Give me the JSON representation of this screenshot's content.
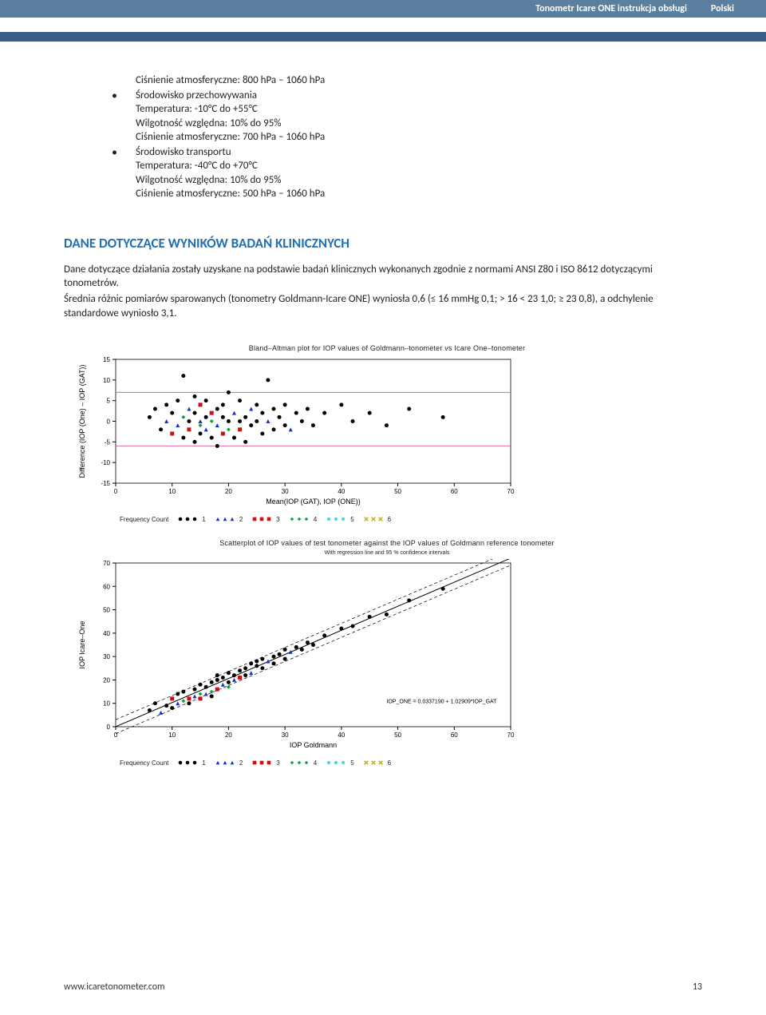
{
  "header": {
    "title": "Tonometr Icare ONE  instrukcja obsługi",
    "lang": "Polski"
  },
  "specs": {
    "line1": "Ciśnienie atmosferyczne: 800 hPa – 1060 hPa",
    "storage": {
      "title": "Środowisko przechowywania",
      "temp": "Temperatura: -10°C do +55°C",
      "humid": "Wilgotność względna: 10% do 95%",
      "press": "Ciśnienie atmosferyczne: 700 hPa – 1060 hPa"
    },
    "transport": {
      "title": "Środowisko transportu",
      "temp": "Temperatura: -40°C do +70°C",
      "humid": "Wilgotność względna: 10% do 95%",
      "press": "Ciśnienie atmosferyczne: 500 hPa – 1060 hPa"
    }
  },
  "section_title": "DANE DOTYCZĄCE WYNIKÓW BADAŃ KLINICZNYCH",
  "para1": "Dane dotyczące działania zostały uzyskane na podstawie badań klinicznych wykonanych zgodnie z normami ANSI Z80 i ISO 8612 dotyczącymi tonometrów.",
  "para2": "Średnia różnic pomiarów sparowanych (tonometry Goldmann-Icare ONE) wyniosła 0,6 (≤ 16 mmHg 0,1; > 16 < 23 1,0; ≥ 23 0,8), a odchylenie standardowe wyniosło 3,1.",
  "chart1": {
    "title": "Bland–Altman plot for IOP values of Goldmann–tonometer vs Icare One–tonometer",
    "ylabel": "Difference (IOP (One) – IOP (GAT))",
    "xlabel": "Mean(IOP (GAT), IOP (ONE))",
    "xlim": [
      0,
      70
    ],
    "ylim": [
      -15,
      15
    ],
    "xticks": [
      0,
      10,
      20,
      30,
      40,
      50,
      60,
      70
    ],
    "yticks": [
      -15,
      -10,
      -5,
      0,
      5,
      10,
      15
    ],
    "ref_lines": {
      "upper": 7,
      "lower": -6,
      "upper_color": "#d94c8a",
      "lower_color": "#d94c8a"
    },
    "grid_color": "#000000",
    "background_color": "#ffffff",
    "points": [
      {
        "x": 6,
        "y": 1,
        "c": "#000",
        "s": "circle"
      },
      {
        "x": 7,
        "y": 3,
        "c": "#000",
        "s": "circle"
      },
      {
        "x": 8,
        "y": -2,
        "c": "#000",
        "s": "circle"
      },
      {
        "x": 9,
        "y": 0,
        "c": "#1030d0",
        "s": "tri"
      },
      {
        "x": 9,
        "y": 4,
        "c": "#000",
        "s": "circle"
      },
      {
        "x": 10,
        "y": -3,
        "c": "#d01010",
        "s": "sq"
      },
      {
        "x": 10,
        "y": 2,
        "c": "#000",
        "s": "circle"
      },
      {
        "x": 11,
        "y": -1,
        "c": "#1030d0",
        "s": "tri"
      },
      {
        "x": 11,
        "y": 5,
        "c": "#000",
        "s": "circle"
      },
      {
        "x": 12,
        "y": -4,
        "c": "#000",
        "s": "circle"
      },
      {
        "x": 12,
        "y": 1,
        "c": "#10a040",
        "s": "diam"
      },
      {
        "x": 12,
        "y": 11,
        "c": "#000",
        "s": "circle"
      },
      {
        "x": 13,
        "y": -2,
        "c": "#d01010",
        "s": "sq"
      },
      {
        "x": 13,
        "y": 3,
        "c": "#1030d0",
        "s": "tri"
      },
      {
        "x": 13,
        "y": 0,
        "c": "#000",
        "s": "circle"
      },
      {
        "x": 14,
        "y": -5,
        "c": "#000",
        "s": "circle"
      },
      {
        "x": 14,
        "y": 2,
        "c": "#000",
        "s": "circle"
      },
      {
        "x": 14,
        "y": 6,
        "c": "#000",
        "s": "circle"
      },
      {
        "x": 15,
        "y": -1,
        "c": "#10a040",
        "s": "diam"
      },
      {
        "x": 15,
        "y": 4,
        "c": "#d01010",
        "s": "sq"
      },
      {
        "x": 15,
        "y": 0,
        "c": "#1030d0",
        "s": "tri"
      },
      {
        "x": 15,
        "y": -3,
        "c": "#000",
        "s": "circle"
      },
      {
        "x": 16,
        "y": 1,
        "c": "#000",
        "s": "circle"
      },
      {
        "x": 16,
        "y": -2,
        "c": "#1030d0",
        "s": "tri"
      },
      {
        "x": 16,
        "y": 5,
        "c": "#000",
        "s": "circle"
      },
      {
        "x": 17,
        "y": -4,
        "c": "#000",
        "s": "circle"
      },
      {
        "x": 17,
        "y": 2,
        "c": "#d01010",
        "s": "sq"
      },
      {
        "x": 17,
        "y": 0,
        "c": "#10a040",
        "s": "diam"
      },
      {
        "x": 18,
        "y": -6,
        "c": "#000",
        "s": "circle"
      },
      {
        "x": 18,
        "y": 3,
        "c": "#000",
        "s": "circle"
      },
      {
        "x": 18,
        "y": -1,
        "c": "#1030d0",
        "s": "tri"
      },
      {
        "x": 19,
        "y": 1,
        "c": "#000",
        "s": "circle"
      },
      {
        "x": 19,
        "y": -3,
        "c": "#d01010",
        "s": "sq"
      },
      {
        "x": 19,
        "y": 4,
        "c": "#000",
        "s": "circle"
      },
      {
        "x": 20,
        "y": 0,
        "c": "#000",
        "s": "circle"
      },
      {
        "x": 20,
        "y": -2,
        "c": "#10a040",
        "s": "diam"
      },
      {
        "x": 20,
        "y": 7,
        "c": "#000",
        "s": "circle"
      },
      {
        "x": 21,
        "y": 2,
        "c": "#1030d0",
        "s": "tri"
      },
      {
        "x": 21,
        "y": -4,
        "c": "#000",
        "s": "circle"
      },
      {
        "x": 22,
        "y": 0,
        "c": "#000",
        "s": "circle"
      },
      {
        "x": 22,
        "y": 5,
        "c": "#000",
        "s": "circle"
      },
      {
        "x": 22,
        "y": -2,
        "c": "#d01010",
        "s": "sq"
      },
      {
        "x": 23,
        "y": 1,
        "c": "#000",
        "s": "circle"
      },
      {
        "x": 23,
        "y": -5,
        "c": "#000",
        "s": "circle"
      },
      {
        "x": 24,
        "y": 3,
        "c": "#1030d0",
        "s": "tri"
      },
      {
        "x": 24,
        "y": -1,
        "c": "#000",
        "s": "circle"
      },
      {
        "x": 25,
        "y": 0,
        "c": "#000",
        "s": "circle"
      },
      {
        "x": 25,
        "y": 4,
        "c": "#000",
        "s": "circle"
      },
      {
        "x": 26,
        "y": -3,
        "c": "#000",
        "s": "circle"
      },
      {
        "x": 26,
        "y": 2,
        "c": "#000",
        "s": "circle"
      },
      {
        "x": 27,
        "y": 10,
        "c": "#000",
        "s": "circle"
      },
      {
        "x": 27,
        "y": 0,
        "c": "#1030d0",
        "s": "tri"
      },
      {
        "x": 28,
        "y": -2,
        "c": "#000",
        "s": "circle"
      },
      {
        "x": 28,
        "y": 3,
        "c": "#000",
        "s": "circle"
      },
      {
        "x": 29,
        "y": 1,
        "c": "#000",
        "s": "circle"
      },
      {
        "x": 30,
        "y": -1,
        "c": "#000",
        "s": "circle"
      },
      {
        "x": 30,
        "y": 4,
        "c": "#000",
        "s": "circle"
      },
      {
        "x": 31,
        "y": -2,
        "c": "#1030d0",
        "s": "tri"
      },
      {
        "x": 32,
        "y": 2,
        "c": "#000",
        "s": "circle"
      },
      {
        "x": 33,
        "y": 0,
        "c": "#000",
        "s": "circle"
      },
      {
        "x": 34,
        "y": 3,
        "c": "#000",
        "s": "circle"
      },
      {
        "x": 35,
        "y": -1,
        "c": "#000",
        "s": "circle"
      },
      {
        "x": 37,
        "y": 2,
        "c": "#000",
        "s": "circle"
      },
      {
        "x": 40,
        "y": 4,
        "c": "#000",
        "s": "circle"
      },
      {
        "x": 42,
        "y": 0,
        "c": "#000",
        "s": "circle"
      },
      {
        "x": 45,
        "y": 2,
        "c": "#000",
        "s": "circle"
      },
      {
        "x": 48,
        "y": -1,
        "c": "#000",
        "s": "circle"
      },
      {
        "x": 52,
        "y": 3,
        "c": "#000",
        "s": "circle"
      },
      {
        "x": 58,
        "y": 1,
        "c": "#000",
        "s": "circle"
      }
    ]
  },
  "chart2": {
    "title": "Scatterplot of IOP values of test tonometer against the IOP values of Goldmann reference tonometer",
    "subtitle": "With regression line and 95 % confidence intervals",
    "ylabel": "IOP Icare–One",
    "xlabel": "IOP Goldmann",
    "xlim": [
      0,
      70
    ],
    "ylim": [
      0,
      70
    ],
    "xticks": [
      0,
      10,
      20,
      30,
      40,
      50,
      60,
      70
    ],
    "yticks": [
      0,
      10,
      20,
      30,
      40,
      50,
      60,
      70
    ],
    "regression_label": "IOP_ONE = 0.0337190 + 1.02909*IOP_GAT",
    "regression": {
      "slope": 1.02909,
      "intercept": 0.033719
    },
    "ci_offset": 3,
    "line_color": "#000",
    "ci_dash": "4,3",
    "points": [
      {
        "x": 6,
        "y": 7,
        "c": "#000",
        "s": "circle"
      },
      {
        "x": 7,
        "y": 10,
        "c": "#000",
        "s": "circle"
      },
      {
        "x": 8,
        "y": 6,
        "c": "#1030d0",
        "s": "tri"
      },
      {
        "x": 9,
        "y": 9,
        "c": "#000",
        "s": "circle"
      },
      {
        "x": 10,
        "y": 12,
        "c": "#d01010",
        "s": "sq"
      },
      {
        "x": 10,
        "y": 8,
        "c": "#000",
        "s": "circle"
      },
      {
        "x": 11,
        "y": 10,
        "c": "#1030d0",
        "s": "tri"
      },
      {
        "x": 11,
        "y": 14,
        "c": "#000",
        "s": "circle"
      },
      {
        "x": 12,
        "y": 11,
        "c": "#10a040",
        "s": "diam"
      },
      {
        "x": 12,
        "y": 15,
        "c": "#000",
        "s": "circle"
      },
      {
        "x": 13,
        "y": 12,
        "c": "#d01010",
        "s": "sq"
      },
      {
        "x": 13,
        "y": 10,
        "c": "#000",
        "s": "circle"
      },
      {
        "x": 14,
        "y": 16,
        "c": "#000",
        "s": "circle"
      },
      {
        "x": 14,
        "y": 13,
        "c": "#1030d0",
        "s": "tri"
      },
      {
        "x": 15,
        "y": 14,
        "c": "#10a040",
        "s": "diam"
      },
      {
        "x": 15,
        "y": 18,
        "c": "#000",
        "s": "circle"
      },
      {
        "x": 15,
        "y": 12,
        "c": "#d01010",
        "s": "sq"
      },
      {
        "x": 16,
        "y": 17,
        "c": "#000",
        "s": "circle"
      },
      {
        "x": 16,
        "y": 14,
        "c": "#1030d0",
        "s": "tri"
      },
      {
        "x": 17,
        "y": 19,
        "c": "#000",
        "s": "circle"
      },
      {
        "x": 17,
        "y": 15,
        "c": "#10a040",
        "s": "diam"
      },
      {
        "x": 17,
        "y": 13,
        "c": "#000",
        "s": "circle"
      },
      {
        "x": 18,
        "y": 20,
        "c": "#000",
        "s": "circle"
      },
      {
        "x": 18,
        "y": 16,
        "c": "#d01010",
        "s": "sq"
      },
      {
        "x": 18,
        "y": 22,
        "c": "#000",
        "s": "circle"
      },
      {
        "x": 19,
        "y": 18,
        "c": "#1030d0",
        "s": "tri"
      },
      {
        "x": 19,
        "y": 21,
        "c": "#000",
        "s": "circle"
      },
      {
        "x": 20,
        "y": 19,
        "c": "#000",
        "s": "circle"
      },
      {
        "x": 20,
        "y": 23,
        "c": "#000",
        "s": "circle"
      },
      {
        "x": 20,
        "y": 17,
        "c": "#10a040",
        "s": "diam"
      },
      {
        "x": 21,
        "y": 22,
        "c": "#000",
        "s": "circle"
      },
      {
        "x": 21,
        "y": 20,
        "c": "#1030d0",
        "s": "tri"
      },
      {
        "x": 22,
        "y": 24,
        "c": "#000",
        "s": "circle"
      },
      {
        "x": 22,
        "y": 21,
        "c": "#d01010",
        "s": "sq"
      },
      {
        "x": 23,
        "y": 25,
        "c": "#000",
        "s": "circle"
      },
      {
        "x": 23,
        "y": 22,
        "c": "#000",
        "s": "circle"
      },
      {
        "x": 24,
        "y": 27,
        "c": "#000",
        "s": "circle"
      },
      {
        "x": 24,
        "y": 23,
        "c": "#1030d0",
        "s": "tri"
      },
      {
        "x": 25,
        "y": 26,
        "c": "#000",
        "s": "circle"
      },
      {
        "x": 25,
        "y": 28,
        "c": "#000",
        "s": "circle"
      },
      {
        "x": 26,
        "y": 25,
        "c": "#000",
        "s": "circle"
      },
      {
        "x": 26,
        "y": 29,
        "c": "#000",
        "s": "circle"
      },
      {
        "x": 27,
        "y": 28,
        "c": "#1030d0",
        "s": "tri"
      },
      {
        "x": 28,
        "y": 30,
        "c": "#000",
        "s": "circle"
      },
      {
        "x": 28,
        "y": 27,
        "c": "#000",
        "s": "circle"
      },
      {
        "x": 29,
        "y": 31,
        "c": "#000",
        "s": "circle"
      },
      {
        "x": 30,
        "y": 29,
        "c": "#000",
        "s": "circle"
      },
      {
        "x": 30,
        "y": 33,
        "c": "#000",
        "s": "circle"
      },
      {
        "x": 31,
        "y": 32,
        "c": "#1030d0",
        "s": "tri"
      },
      {
        "x": 32,
        "y": 34,
        "c": "#000",
        "s": "circle"
      },
      {
        "x": 33,
        "y": 33,
        "c": "#000",
        "s": "circle"
      },
      {
        "x": 34,
        "y": 36,
        "c": "#000",
        "s": "circle"
      },
      {
        "x": 35,
        "y": 35,
        "c": "#000",
        "s": "circle"
      },
      {
        "x": 37,
        "y": 39,
        "c": "#000",
        "s": "circle"
      },
      {
        "x": 40,
        "y": 42,
        "c": "#000",
        "s": "circle"
      },
      {
        "x": 42,
        "y": 43,
        "c": "#000",
        "s": "circle"
      },
      {
        "x": 45,
        "y": 47,
        "c": "#000",
        "s": "circle"
      },
      {
        "x": 48,
        "y": 48,
        "c": "#000",
        "s": "circle"
      },
      {
        "x": 52,
        "y": 54,
        "c": "#000",
        "s": "circle"
      },
      {
        "x": 58,
        "y": 59,
        "c": "#000",
        "s": "circle"
      }
    ]
  },
  "legend": {
    "label": "Frequency Count",
    "items": [
      {
        "n": "1",
        "c": "#000",
        "s": "circle"
      },
      {
        "n": "2",
        "c": "#1030d0",
        "s": "tri"
      },
      {
        "n": "3",
        "c": "#d01010",
        "s": "sq"
      },
      {
        "n": "4",
        "c": "#10a040",
        "s": "diam"
      },
      {
        "n": "5",
        "c": "#40d0e0",
        "s": "star"
      },
      {
        "n": "6",
        "c": "#c0b020",
        "s": "hash"
      }
    ]
  },
  "footer": {
    "url": "www.icaretonometer.com",
    "page": "13"
  }
}
